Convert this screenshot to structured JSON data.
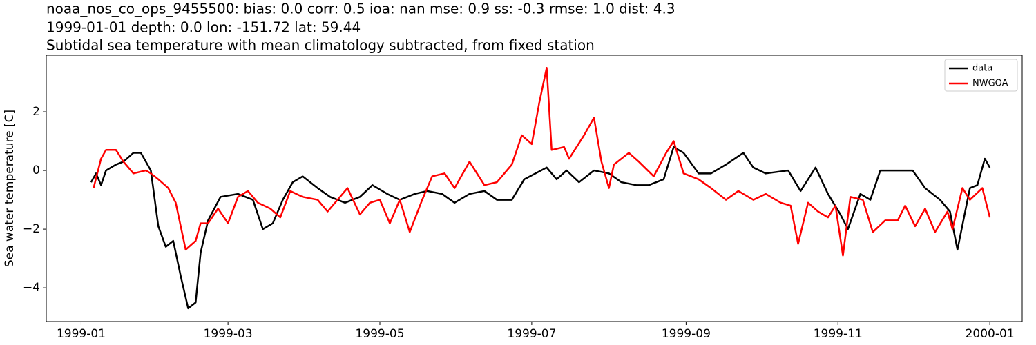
{
  "chart_data": {
    "type": "line",
    "title": [
      "noaa_nos_co_ops_9455500: bias: 0.0  corr: 0.5  ioa: nan  mse: 0.9  ss: -0.3  rmse: 1.0  dist: 4.3",
      "1999-01-01 depth: 0.0 lon: -151.72 lat: 59.44",
      "Subtidal sea temperature with mean climatology subtracted, from fixed station"
    ],
    "ylabel": "Sea water temperature [C]",
    "xlim": [
      -14,
      378
    ],
    "xticks": [
      {
        "value": 0,
        "label": "1999-01"
      },
      {
        "value": 59,
        "label": "1999-03"
      },
      {
        "value": 120,
        "label": "1999-05"
      },
      {
        "value": 181,
        "label": "1999-07"
      },
      {
        "value": 243,
        "label": "1999-09"
      },
      {
        "value": 304,
        "label": "1999-11"
      },
      {
        "value": 365,
        "label": "2000-01"
      }
    ],
    "ylim": [
      -5.15,
      3.93
    ],
    "yticks": [
      {
        "value": -4,
        "label": "−4"
      },
      {
        "value": -2,
        "label": "−2"
      },
      0,
      2
    ],
    "legend": "upper right",
    "series": [
      {
        "name": "data",
        "color": "#000000",
        "x": [
          4,
          6,
          8,
          10,
          14,
          17,
          21,
          24,
          28,
          31,
          34,
          37,
          40,
          43,
          46,
          48,
          51,
          56,
          63,
          69,
          73,
          77,
          81,
          85,
          89,
          95,
          100,
          106,
          112,
          117,
          123,
          128,
          134,
          139,
          145,
          150,
          156,
          162,
          167,
          173,
          178,
          187,
          191,
          195,
          200,
          206,
          212,
          217,
          223,
          228,
          234,
          238,
          242,
          248,
          253,
          259,
          266,
          270,
          275,
          284,
          289,
          295,
          300,
          305,
          308,
          313,
          317,
          321,
          328,
          334,
          339,
          345,
          349,
          352,
          357,
          360,
          363,
          365
        ],
        "values": [
          -0.4,
          -0.1,
          -0.5,
          0.0,
          0.2,
          0.3,
          0.6,
          0.6,
          0.0,
          -1.9,
          -2.6,
          -2.4,
          -3.6,
          -4.7,
          -4.5,
          -2.8,
          -1.7,
          -0.9,
          -0.8,
          -1.0,
          -2.0,
          -1.8,
          -1.0,
          -0.4,
          -0.2,
          -0.6,
          -0.9,
          -1.1,
          -0.9,
          -0.5,
          -0.8,
          -1.0,
          -0.8,
          -0.7,
          -0.8,
          -1.1,
          -0.8,
          -0.7,
          -1.0,
          -1.0,
          -0.3,
          0.1,
          -0.3,
          0.0,
          -0.4,
          0.0,
          -0.1,
          -0.4,
          -0.5,
          -0.5,
          -0.3,
          0.8,
          0.6,
          -0.1,
          -0.1,
          0.2,
          0.6,
          0.1,
          -0.1,
          0.0,
          -0.7,
          0.1,
          -0.8,
          -1.5,
          -2.0,
          -0.8,
          -1.0,
          0.0,
          0.0,
          0.0,
          -0.6,
          -1.0,
          -1.4,
          -2.7,
          -0.6,
          -0.5,
          0.4,
          0.1
        ]
      },
      {
        "name": "NWGOA",
        "color": "#ff0000",
        "x": [
          5,
          8,
          10,
          14,
          17,
          21,
          26,
          28,
          31,
          35,
          38,
          40,
          42,
          46,
          48,
          51,
          55,
          59,
          63,
          67,
          71,
          76,
          80,
          84,
          89,
          95,
          99,
          103,
          107,
          112,
          116,
          120,
          124,
          128,
          132,
          137,
          141,
          146,
          150,
          156,
          162,
          167,
          173,
          177,
          181,
          184,
          187,
          189,
          194,
          196,
          202,
          206,
          209,
          212,
          214,
          220,
          224,
          230,
          235,
          238,
          242,
          248,
          253,
          259,
          264,
          270,
          275,
          281,
          285,
          288,
          292,
          296,
          300,
          303,
          306,
          309,
          314,
          318,
          323,
          328,
          331,
          335,
          339,
          343,
          348,
          350,
          354,
          357,
          362,
          365
        ],
        "values": [
          -0.6,
          0.4,
          0.7,
          0.7,
          0.3,
          -0.1,
          0.0,
          -0.1,
          -0.3,
          -0.6,
          -1.1,
          -1.9,
          -2.7,
          -2.4,
          -1.8,
          -1.8,
          -1.3,
          -1.8,
          -0.9,
          -0.7,
          -1.1,
          -1.3,
          -1.6,
          -0.7,
          -0.9,
          -1.0,
          -1.4,
          -1.0,
          -0.6,
          -1.5,
          -1.1,
          -1.0,
          -1.8,
          -1.0,
          -2.1,
          -1.0,
          -0.2,
          -0.1,
          -0.6,
          0.3,
          -0.5,
          -0.4,
          0.2,
          1.2,
          0.9,
          2.3,
          3.5,
          0.7,
          0.8,
          0.4,
          1.2,
          1.8,
          0.3,
          -0.6,
          0.2,
          0.6,
          0.3,
          -0.2,
          0.6,
          1.0,
          -0.1,
          -0.3,
          -0.6,
          -1.0,
          -0.7,
          -1.0,
          -0.8,
          -1.1,
          -1.2,
          -2.5,
          -1.1,
          -1.4,
          -1.6,
          -1.2,
          -2.9,
          -0.9,
          -1.0,
          -2.1,
          -1.7,
          -1.7,
          -1.2,
          -1.9,
          -1.3,
          -2.1,
          -1.4,
          -2.0,
          -0.6,
          -1.0,
          -0.6,
          -1.6
        ]
      }
    ]
  }
}
